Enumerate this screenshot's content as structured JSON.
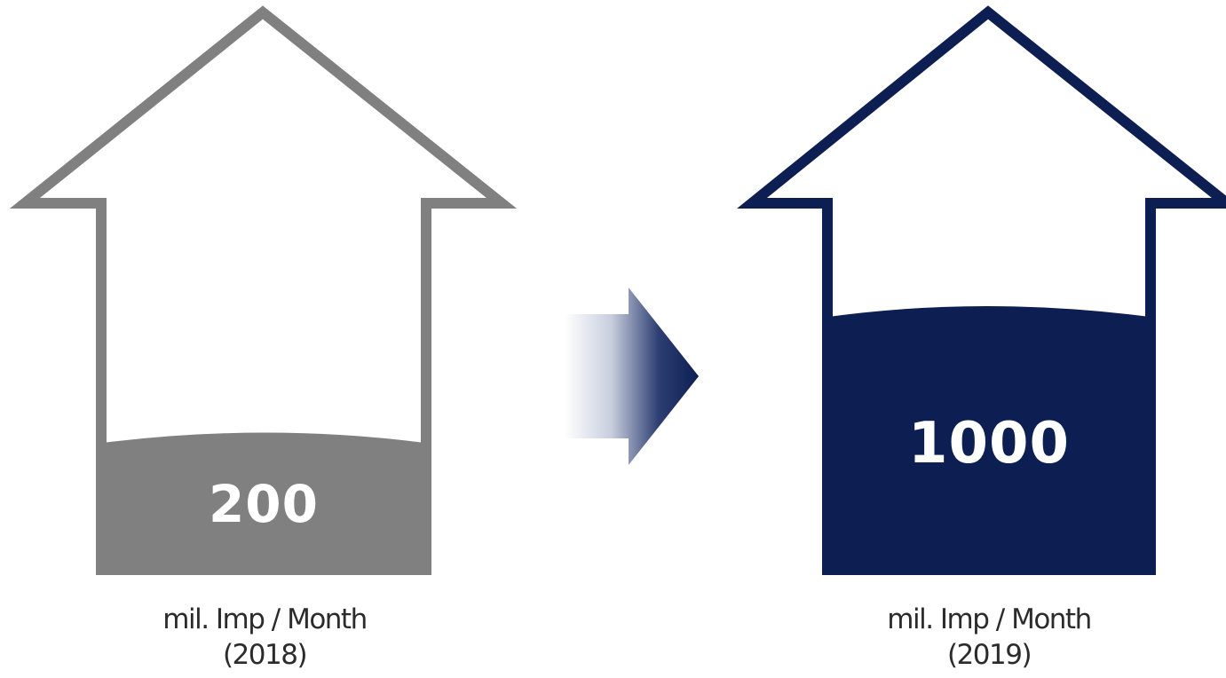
{
  "colors": {
    "gray": "#808080",
    "navy": "#0d1f52",
    "white": "#ffffff",
    "caption": "#2b2b2b"
  },
  "left_house": {
    "value": "200",
    "caption_line1": "mil. Imp / Month",
    "caption_line2": "(2018)"
  },
  "right_house": {
    "value": "1000",
    "caption_line1": "mil. Imp / Month",
    "caption_line2": "(2019)"
  },
  "icons": {
    "left": "house-arrow-outline-icon",
    "middle": "right-arrow-gradient-icon",
    "right": "house-arrow-outline-icon"
  }
}
